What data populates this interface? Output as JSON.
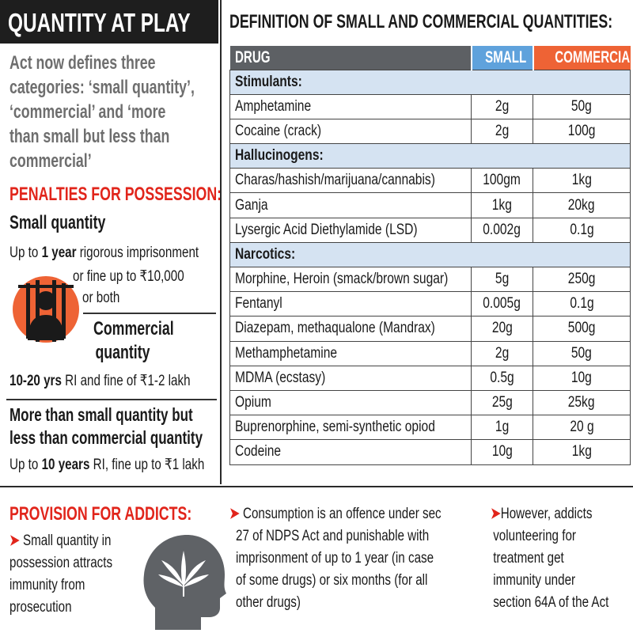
{
  "left_panel": {
    "banner_title": "QUANTITY AT PLAY",
    "intro_lines": [
      "Act now defines three",
      "categories: ‘small quantity’,",
      "‘commercial’ and ‘more",
      "than small but less than",
      "commercial’"
    ],
    "penalties_heading": "PENALTIES FOR POSSESSION:",
    "small": {
      "heading": "Small quantity",
      "line1_pre": "Up to ",
      "line1_bold": "1 year",
      "line1_post": " rigorous imprisonment",
      "line2": "or fine up to ₹10,000",
      "line3": "or both"
    },
    "commercial": {
      "heading_lines": [
        "Commercial",
        "quantity"
      ],
      "penalty_bold": "10-20 yrs",
      "penalty_rest": " RI and fine of ₹1-2 lakh"
    },
    "more_than_small": {
      "heading_lines": [
        "More than small quantity but",
        "less than commercial quantity"
      ],
      "penalty_pre": "Up to ",
      "penalty_bold": "10 years",
      "penalty_rest": " RI, fine up to ₹1 lakh"
    }
  },
  "table": {
    "title": "DEFINITION OF SMALL AND COMMERCIAL QUANTITIES:",
    "headers": {
      "drug": "DRUG",
      "small": "SMALL",
      "commercial": "COMMERCIAL"
    },
    "categories": [
      {
        "name": "Stimulants:",
        "rows": [
          {
            "drug": "Amphetamine",
            "small": "2g",
            "commercial": "50g"
          },
          {
            "drug": "Cocaine (crack)",
            "small": "2g",
            "commercial": "100g"
          }
        ]
      },
      {
        "name": "Hallucinogens:",
        "rows": [
          {
            "drug": "Charas/hashish/marijuana/cannabis)",
            "small": "100gm",
            "commercial": "1kg"
          },
          {
            "drug": "Ganja",
            "small": "1kg",
            "commercial": "20kg"
          },
          {
            "drug": "Lysergic Acid Diethylamide (LSD)",
            "small": "0.002g",
            "commercial": "0.1g"
          }
        ]
      },
      {
        "name": "Narcotics:",
        "rows": [
          {
            "drug": "Morphine, Heroin (smack/brown sugar)",
            "small": "5g",
            "commercial": "250g"
          },
          {
            "drug": "Fentanyl",
            "small": "0.005g",
            "commercial": "0.1g"
          },
          {
            "drug": "Diazepam, methaqualone (Mandrax)",
            "small": "20g",
            "commercial": "500g"
          },
          {
            "drug": "Methamphetamine",
            "small": "2g",
            "commercial": "50g"
          },
          {
            "drug": "MDMA (ecstasy)",
            "small": "0.5g",
            "commercial": "10g"
          },
          {
            "drug": "Opium",
            "small": "25g",
            "commercial": "25kg"
          },
          {
            "drug": "Buprenorphine, semi-synthetic opiod",
            "small": "1g",
            "commercial": "20 g"
          },
          {
            "drug": "Codeine",
            "small": "10g",
            "commercial": "1kg"
          }
        ]
      }
    ]
  },
  "bottom": {
    "heading": "PROVISION FOR ADDICTS:",
    "arrow": "➤",
    "col1_lines": [
      "Small quantity in",
      "possession attracts",
      "immunity from",
      "prosecution"
    ],
    "col2_lines": [
      "Consumption is an offence under sec",
      "27 of NDPS Act and punishable with",
      "imprisonment of up to 1 year (in case",
      "of some drugs) or six months (for all",
      "other drugs)"
    ],
    "col3_lines": [
      "However, addicts",
      "volunteering for",
      "treatment get",
      "immunity under",
      "section 64A of the Act"
    ]
  },
  "colors": {
    "banner_bg": "#1e1e1e",
    "accent_red": "#e1251b",
    "intro_gray": "#6e6e6e",
    "header_drug": "#5d6064",
    "header_small": "#5fa2dc",
    "header_commercial": "#ee6335",
    "category_row": "#d5e3f2"
  },
  "icons": [
    "prison-bars-icon",
    "head-cannabis-icon"
  ]
}
